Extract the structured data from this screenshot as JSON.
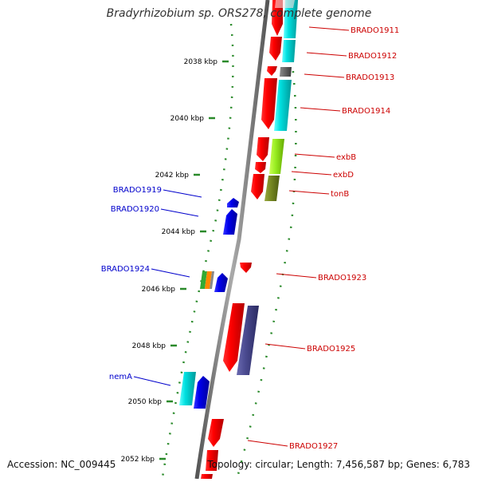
{
  "title": "Bradyrhizobium sp. ORS278, complete genome",
  "footer": {
    "accession": "Accession: NC_009445",
    "topology": "Topology: circular; Length: 7,456,587 bp; Genes: 6,783"
  },
  "colors": {
    "backbone": "#8a8a8a",
    "tick": "#2a8a2a",
    "forward_label": "#cc0000",
    "reverse_label": "#0000cc",
    "tick_label": "#000000"
  },
  "ticks": [
    {
      "label": "2038 kbp"
    },
    {
      "label": "2040 kbp"
    },
    {
      "label": "2042 kbp"
    },
    {
      "label": "2044 kbp"
    },
    {
      "label": "2046 kbp"
    },
    {
      "label": "2048 kbp"
    },
    {
      "label": "2050 kbp"
    },
    {
      "label": "2052 kbp"
    }
  ],
  "forward_genes": [
    {
      "label": "BRADO1911"
    },
    {
      "label": "BRADO1912"
    },
    {
      "label": "BRADO1913"
    },
    {
      "label": "BRADO1914"
    },
    {
      "label": "exbB"
    },
    {
      "label": "exbD"
    },
    {
      "label": "tonB"
    },
    {
      "label": "BRADO1923"
    },
    {
      "label": "BRADO1925"
    },
    {
      "label": "BRADO1927"
    }
  ],
  "reverse_genes": [
    {
      "label": "BRADO1919"
    },
    {
      "label": "BRADO1920"
    },
    {
      "label": "BRADO1924"
    },
    {
      "label": "nemA"
    }
  ]
}
